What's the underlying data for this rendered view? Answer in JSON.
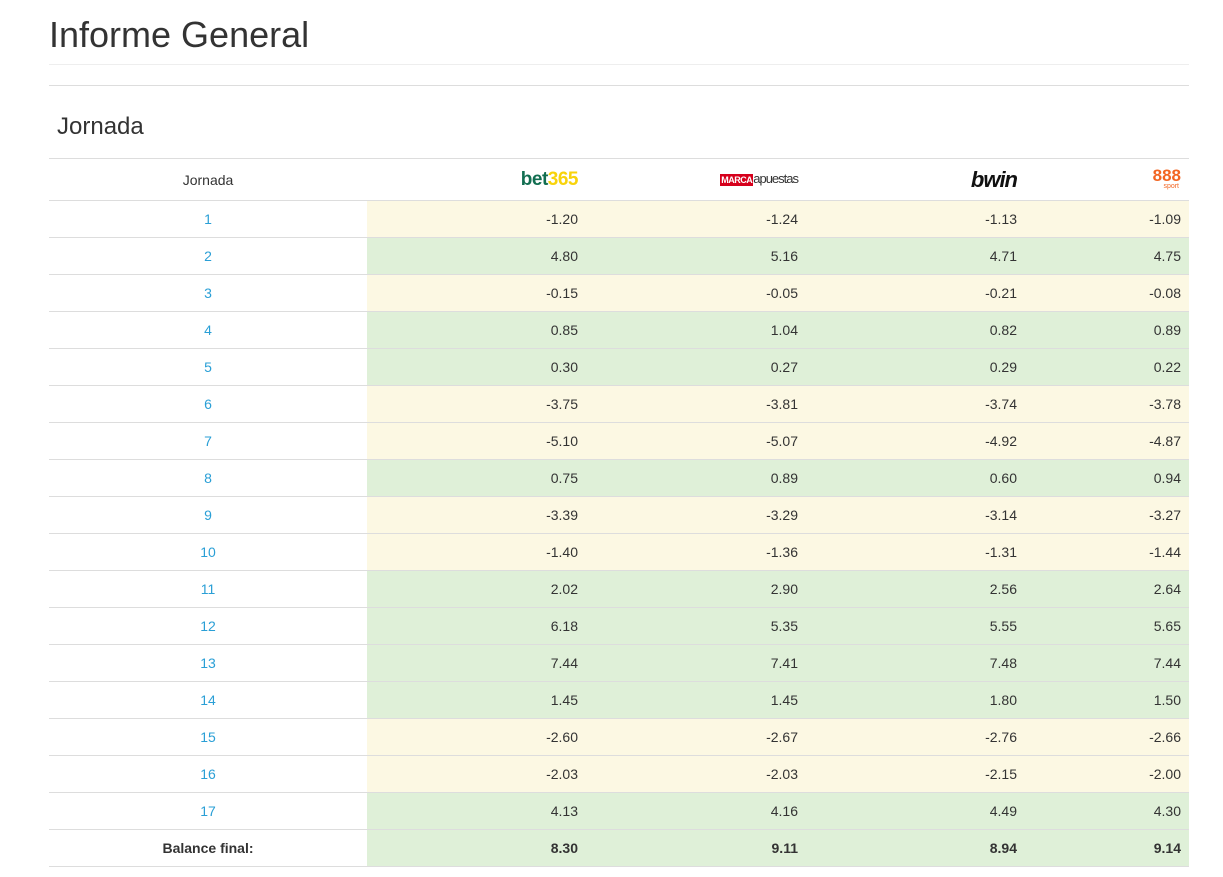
{
  "page": {
    "title": "Informe General"
  },
  "section": {
    "title": "Jornada"
  },
  "table": {
    "header": {
      "jornada_label": "Jornada",
      "bookmakers": [
        {
          "name": "bet365",
          "parts": [
            "bet",
            "365"
          ],
          "colors": [
            "#126e51",
            "#f8d30b"
          ]
        },
        {
          "name": "MARCA apuestas",
          "parts": [
            "MARCA",
            "apuestas"
          ],
          "colors": [
            "#d6001c",
            "#333333"
          ]
        },
        {
          "name": "bwin",
          "parts": [
            "bwin"
          ],
          "colors": [
            "#111111"
          ]
        },
        {
          "name": "888 sport",
          "parts": [
            "888",
            "sport"
          ],
          "colors": [
            "#f26522",
            "#f26522"
          ]
        }
      ]
    },
    "rows": [
      {
        "jornada": "1",
        "values": [
          "-1.20",
          "-1.24",
          "-1.13",
          "-1.09"
        ],
        "status": "neg"
      },
      {
        "jornada": "2",
        "values": [
          "4.80",
          "5.16",
          "4.71",
          "4.75"
        ],
        "status": "pos"
      },
      {
        "jornada": "3",
        "values": [
          "-0.15",
          "-0.05",
          "-0.21",
          "-0.08"
        ],
        "status": "neg"
      },
      {
        "jornada": "4",
        "values": [
          "0.85",
          "1.04",
          "0.82",
          "0.89"
        ],
        "status": "pos"
      },
      {
        "jornada": "5",
        "values": [
          "0.30",
          "0.27",
          "0.29",
          "0.22"
        ],
        "status": "pos"
      },
      {
        "jornada": "6",
        "values": [
          "-3.75",
          "-3.81",
          "-3.74",
          "-3.78"
        ],
        "status": "neg"
      },
      {
        "jornada": "7",
        "values": [
          "-5.10",
          "-5.07",
          "-4.92",
          "-4.87"
        ],
        "status": "neg"
      },
      {
        "jornada": "8",
        "values": [
          "0.75",
          "0.89",
          "0.60",
          "0.94"
        ],
        "status": "pos"
      },
      {
        "jornada": "9",
        "values": [
          "-3.39",
          "-3.29",
          "-3.14",
          "-3.27"
        ],
        "status": "neg"
      },
      {
        "jornada": "10",
        "values": [
          "-1.40",
          "-1.36",
          "-1.31",
          "-1.44"
        ],
        "status": "neg"
      },
      {
        "jornada": "11",
        "values": [
          "2.02",
          "2.90",
          "2.56",
          "2.64"
        ],
        "status": "pos"
      },
      {
        "jornada": "12",
        "values": [
          "6.18",
          "5.35",
          "5.55",
          "5.65"
        ],
        "status": "pos"
      },
      {
        "jornada": "13",
        "values": [
          "7.44",
          "7.41",
          "7.48",
          "7.44"
        ],
        "status": "pos"
      },
      {
        "jornada": "14",
        "values": [
          "1.45",
          "1.45",
          "1.80",
          "1.50"
        ],
        "status": "pos"
      },
      {
        "jornada": "15",
        "values": [
          "-2.60",
          "-2.67",
          "-2.76",
          "-2.66"
        ],
        "status": "neg"
      },
      {
        "jornada": "16",
        "values": [
          "-2.03",
          "-2.03",
          "-2.15",
          "-2.00"
        ],
        "status": "neg"
      },
      {
        "jornada": "17",
        "values": [
          "4.13",
          "4.16",
          "4.49",
          "4.30"
        ],
        "status": "pos"
      }
    ],
    "total": {
      "label": "Balance final:",
      "values": [
        "8.30",
        "9.11",
        "8.94",
        "9.14"
      ]
    }
  },
  "colors": {
    "positive_bg": "#dff0d8",
    "negative_bg": "#fcf8e3",
    "link": "#2a9fd6",
    "border": "#dddddd"
  }
}
